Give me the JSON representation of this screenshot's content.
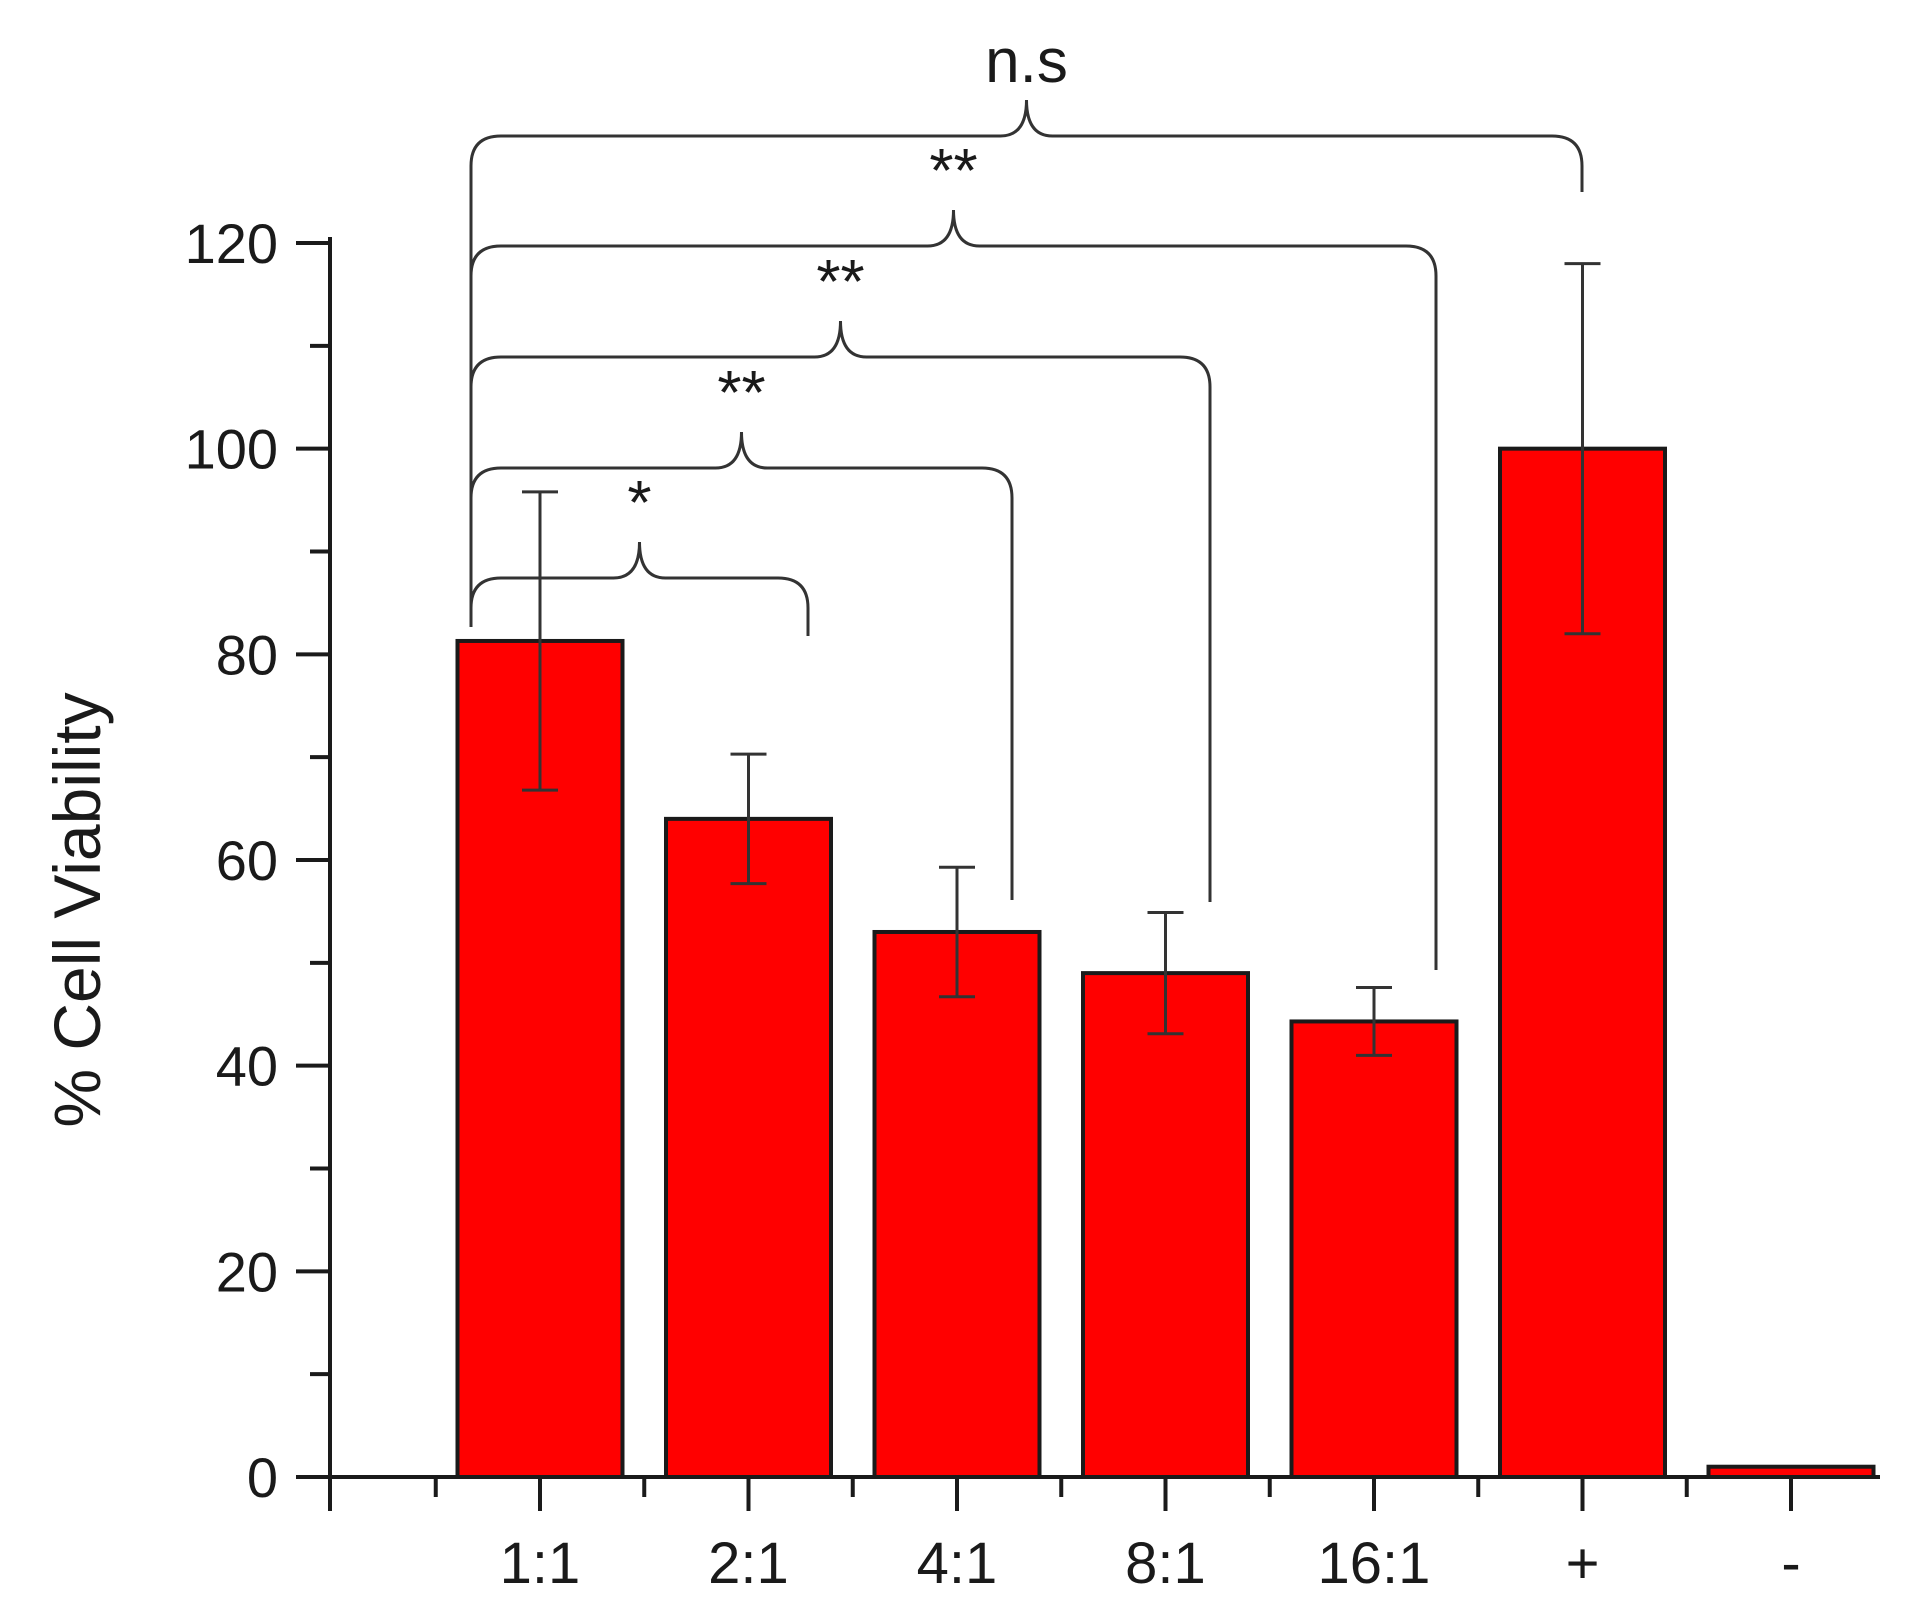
{
  "chart_data": {
    "type": "bar",
    "title": "",
    "xlabel": "",
    "ylabel": "% Cell Viability",
    "ylim": [
      0,
      120
    ],
    "yticks": [
      0,
      20,
      40,
      60,
      80,
      100,
      120
    ],
    "categories": [
      "1:1",
      "2:1",
      "4:1",
      "8:1",
      "16:1",
      "+",
      "-"
    ],
    "values": [
      81.3,
      64.0,
      53.0,
      49.0,
      44.3,
      100.0,
      1.0
    ],
    "errors": [
      14.5,
      6.3,
      6.3,
      5.9,
      3.3,
      18.0,
      0
    ],
    "bar_color": "#ff0000",
    "grid": false,
    "legend": "none",
    "significance": [
      {
        "from": "1:1",
        "to": "2:1",
        "label": "*"
      },
      {
        "from": "1:1",
        "to": "4:1",
        "label": "**"
      },
      {
        "from": "1:1",
        "to": "8:1",
        "label": "**"
      },
      {
        "from": "1:1",
        "to": "16:1",
        "label": "**"
      },
      {
        "from": "1:1",
        "to": "+",
        "label": "n.s"
      }
    ]
  }
}
